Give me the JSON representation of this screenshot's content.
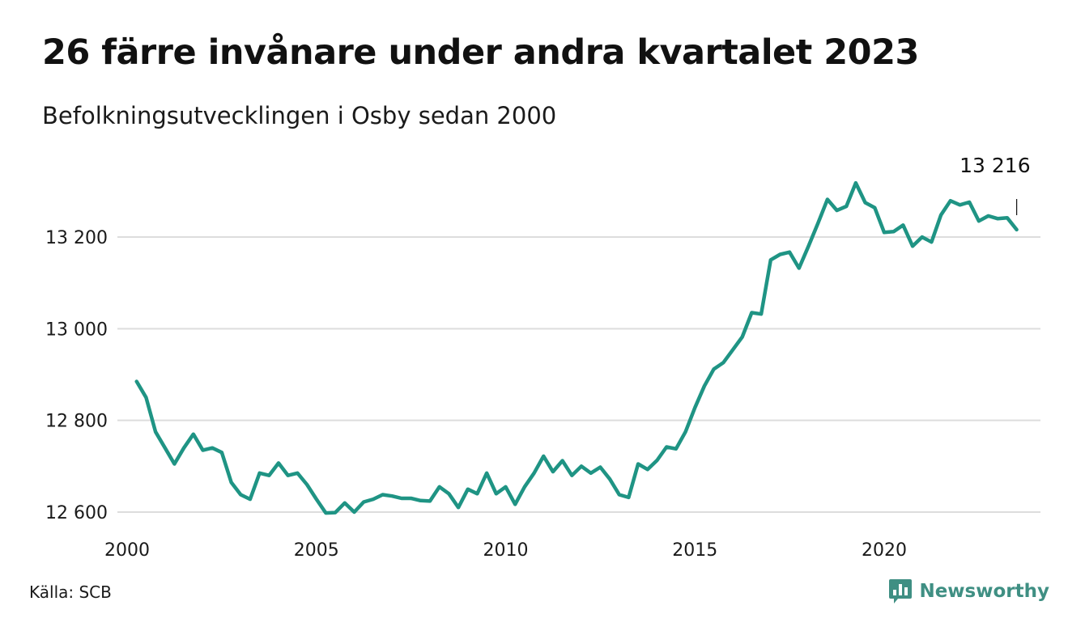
{
  "title": "26 färre invånare under andra kvartalet 2023",
  "subtitle": "Befolkningsutvecklingen i Osby sedan 2000",
  "source": "Källa: SCB",
  "brand": {
    "name": "Newsworthy",
    "icon": "newsworthy-logo-icon",
    "color": "#3f8f83"
  },
  "chart_data": {
    "type": "line",
    "title": "26 färre invånare under andra kvartalet 2023",
    "subtitle": "Befolkningsutvecklingen i Osby sedan 2000",
    "xlabel": "",
    "ylabel": "",
    "xlim": [
      2000,
      2024.5
    ],
    "ylim": [
      12600,
      13320
    ],
    "x_ticks": [
      2000,
      2005,
      2010,
      2015,
      2020
    ],
    "x_tick_labels": [
      "2000",
      "2005",
      "2010",
      "2015",
      "2020"
    ],
    "y_ticks": [
      12600,
      12800,
      13000,
      13200
    ],
    "y_tick_labels": [
      "12 600",
      "12 800",
      "13 000",
      "13 200"
    ],
    "grid": "horizontal",
    "line_color": "#1f9484",
    "end_label": "13 216",
    "series": [
      {
        "x": [
          2000.25,
          2000.5,
          2000.75,
          2001.0,
          2001.25,
          2001.5,
          2001.75,
          2002.0,
          2002.25,
          2002.5,
          2002.75,
          2003.0,
          2003.25,
          2003.5,
          2003.75,
          2004.0,
          2004.25,
          2004.5,
          2004.75,
          2005.0,
          2005.25,
          2005.5,
          2005.75,
          2006.0,
          2006.25,
          2006.5,
          2006.75,
          2007.0,
          2007.25,
          2007.5,
          2007.75,
          2008.0,
          2008.25,
          2008.5,
          2008.75,
          2009.0,
          2009.25,
          2009.5,
          2009.75,
          2010.0,
          2010.25,
          2010.5,
          2010.75,
          2011.0,
          2011.25,
          2011.5,
          2011.75,
          2012.0,
          2012.25,
          2012.5,
          2012.75,
          2013.0,
          2013.25,
          2013.5,
          2013.75,
          2014.0,
          2014.25,
          2014.5,
          2014.75,
          2015.0,
          2015.25,
          2015.5,
          2015.75,
          2016.0,
          2016.25,
          2016.5,
          2016.75,
          2017.0,
          2017.25,
          2017.5,
          2017.75,
          2018.0,
          2018.25,
          2018.5,
          2018.75,
          2019.0,
          2019.25,
          2019.5,
          2019.75,
          2020.0,
          2020.25,
          2020.5,
          2020.75,
          2021.0,
          2021.25,
          2021.5,
          2021.75,
          2022.0,
          2022.25,
          2022.5,
          2022.75,
          2023.0,
          2023.25,
          2023.5
        ],
        "values": [
          12885,
          12850,
          12775,
          12740,
          12705,
          12740,
          12770,
          12735,
          12740,
          12730,
          12665,
          12638,
          12628,
          12685,
          12680,
          12707,
          12680,
          12685,
          12660,
          12628,
          12598,
          12599,
          12620,
          12600,
          12622,
          12628,
          12638,
          12635,
          12630,
          12630,
          12625,
          12624,
          12655,
          12640,
          12610,
          12650,
          12640,
          12685,
          12640,
          12655,
          12617,
          12655,
          12685,
          12722,
          12688,
          12712,
          12680,
          12700,
          12685,
          12698,
          12672,
          12638,
          12632,
          12705,
          12693,
          12713,
          12742,
          12738,
          12775,
          12828,
          12875,
          12912,
          12926,
          12954,
          12982,
          13035,
          13032,
          13150,
          13162,
          13167,
          13132,
          13180,
          13230,
          13282,
          13258,
          13267,
          13318,
          13275,
          13264,
          13210,
          13212,
          13226,
          13180,
          13200,
          13189,
          13248,
          13279,
          13270,
          13276,
          13235,
          13246,
          13240,
          13242,
          13216
        ]
      }
    ]
  }
}
